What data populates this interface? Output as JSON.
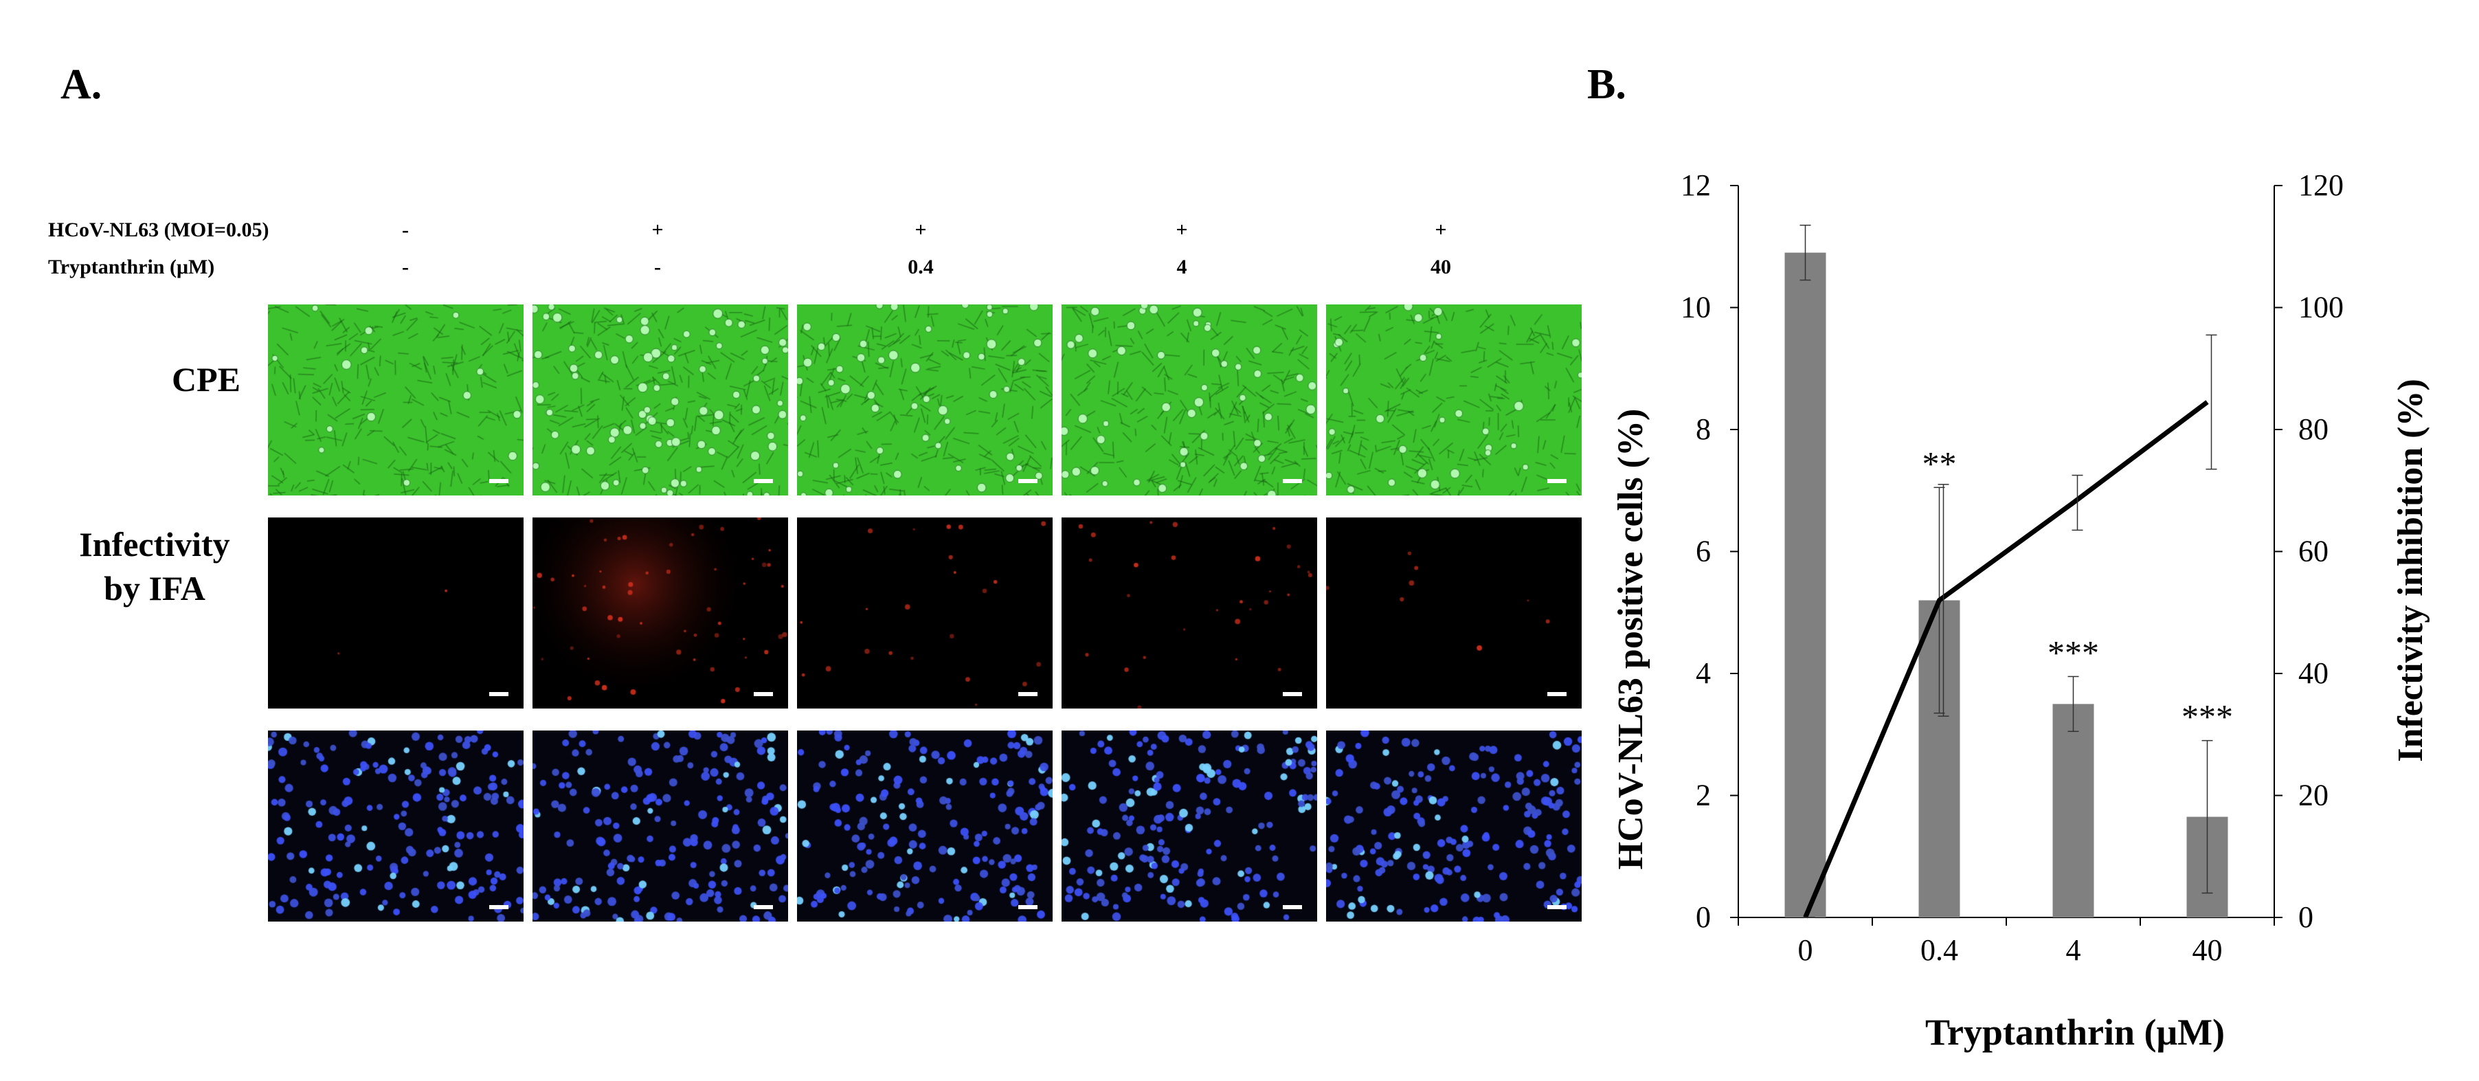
{
  "panel_a": {
    "label": "A.",
    "condition_rows": [
      {
        "label": "HCoV-NL63 (MOI=0.05)",
        "values": [
          "-",
          "+",
          "+",
          "+",
          "+"
        ]
      },
      {
        "label": "Tryptanthrin  (μM)",
        "values": [
          "-",
          "-",
          "0.4",
          "4",
          "40"
        ]
      }
    ],
    "image_rows": [
      {
        "label": "CPE",
        "kind": "phase-contrast",
        "color": "#35c12a"
      },
      {
        "label": "Infectivity\nby IFA",
        "kind": "immunofluorescence",
        "color": "#c0241a"
      },
      {
        "label": "",
        "kind": "nuclear-stain",
        "color": "#2f3fe0"
      }
    ]
  },
  "panel_b": {
    "label": "B."
  },
  "chart_data": {
    "type": "bar",
    "title": "",
    "xlabel": "Tryptanthrin (μM)",
    "ylabel": "HCoV-NL63 positive cells (%)",
    "y2label": "Infectivity inhibition (%)",
    "categories": [
      "0",
      "0.4",
      "4",
      "40"
    ],
    "ylim": [
      0,
      12
    ],
    "yticks": [
      0,
      2,
      4,
      6,
      8,
      10,
      12
    ],
    "y2lim": [
      0,
      120
    ],
    "y2ticks": [
      0,
      20,
      40,
      60,
      80,
      100,
      120
    ],
    "series": [
      {
        "type": "bar",
        "axis": "left",
        "values": [
          10.9,
          5.2,
          3.5,
          1.65
        ],
        "errors": [
          0.45,
          1.85,
          0.45,
          1.25
        ],
        "color": "#808080"
      },
      {
        "type": "line",
        "axis": "right",
        "values": [
          0,
          52,
          68,
          84.5
        ],
        "errors": [
          0,
          19,
          4.5,
          11
        ],
        "color": "#000000"
      }
    ],
    "annotations": [
      "",
      "**",
      "***",
      "***"
    ]
  }
}
